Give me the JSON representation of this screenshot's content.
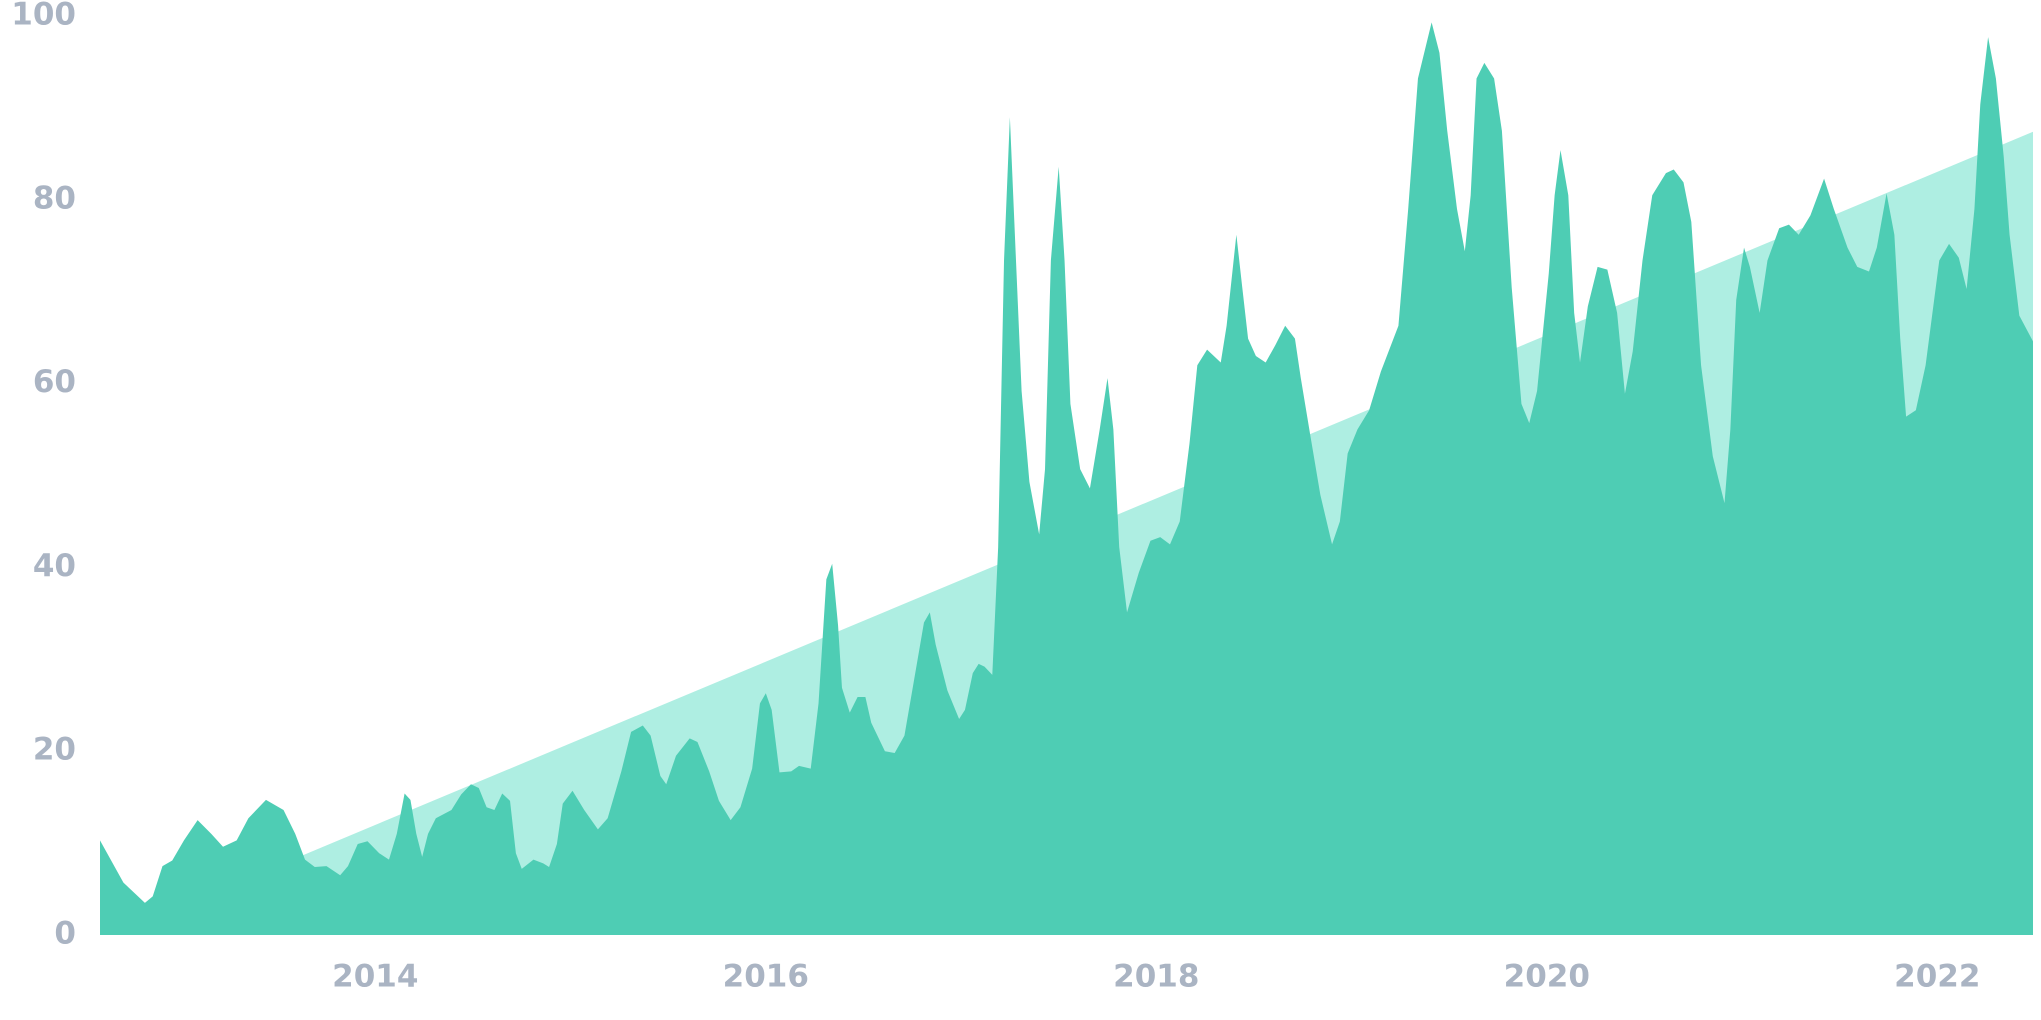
{
  "chart_data": {
    "type": "area",
    "x": [
      2012.59,
      2012.71,
      2012.82,
      2012.86,
      2012.91,
      2012.96,
      2013.02,
      2013.09,
      2013.16,
      2013.22,
      2013.29,
      2013.35,
      2013.44,
      2013.53,
      2013.59,
      2013.64,
      2013.69,
      2013.75,
      2013.82,
      2013.86,
      2013.91,
      2013.96,
      2014.02,
      2014.07,
      2014.11,
      2014.15,
      2014.18,
      2014.21,
      2014.24,
      2014.27,
      2014.31,
      2014.39,
      2014.44,
      2014.49,
      2014.53,
      2014.57,
      2014.61,
      2014.65,
      2014.69,
      2014.72,
      2014.75,
      2014.81,
      2014.86,
      2014.89,
      2014.93,
      2014.96,
      2015.01,
      2015.07,
      2015.14,
      2015.19,
      2015.26,
      2015.31,
      2015.37,
      2015.41,
      2015.46,
      2015.49,
      2015.54,
      2015.61,
      2015.65,
      2015.71,
      2015.76,
      2015.82,
      2015.87,
      2015.93,
      2015.97,
      2016.0,
      2016.03,
      2016.07,
      2016.13,
      2016.17,
      2016.23,
      2016.27,
      2016.31,
      2016.34,
      2016.37,
      2016.39,
      2016.43,
      2016.47,
      2016.51,
      2016.54,
      2016.61,
      2016.66,
      2016.71,
      2016.75,
      2016.81,
      2016.84,
      2016.87,
      2016.93,
      2016.99,
      2017.02,
      2017.06,
      2017.09,
      2017.12,
      2017.16,
      2017.19,
      2017.22,
      2017.25,
      2017.27,
      2017.31,
      2017.35,
      2017.4,
      2017.43,
      2017.46,
      2017.5,
      2017.53,
      2017.56,
      2017.61,
      2017.66,
      2017.71,
      2017.75,
      2017.78,
      2017.81,
      2017.85,
      2017.91,
      2017.97,
      2018.02,
      2018.07,
      2018.12,
      2018.17,
      2018.21,
      2018.26,
      2018.33,
      2018.36,
      2018.41,
      2018.44,
      2018.47,
      2018.51,
      2018.56,
      2018.61,
      2018.66,
      2018.71,
      2018.74,
      2018.79,
      2018.84,
      2018.9,
      2018.94,
      2018.98,
      2019.03,
      2019.09,
      2019.15,
      2019.24,
      2019.29,
      2019.34,
      2019.41,
      2019.45,
      2019.49,
      2019.54,
      2019.58,
      2019.61,
      2019.64,
      2019.68,
      2019.73,
      2019.77,
      2019.82,
      2019.87,
      2019.91,
      2019.95,
      2020.01,
      2020.04,
      2020.07,
      2020.11,
      2020.14,
      2020.17,
      2020.21,
      2020.26,
      2020.31,
      2020.36,
      2020.4,
      2020.44,
      2020.49,
      2020.54,
      2020.61,
      2020.65,
      2020.7,
      2020.74,
      2020.79,
      2020.85,
      2020.91,
      2020.94,
      2020.97,
      2021.01,
      2021.04,
      2021.09,
      2021.13,
      2021.19,
      2021.24,
      2021.29,
      2021.35,
      2021.42,
      2021.47,
      2021.54,
      2021.59,
      2021.65,
      2021.69,
      2021.74,
      2021.78,
      2021.81,
      2021.84,
      2021.89,
      2021.94,
      2022.01,
      2022.06,
      2022.11,
      2022.15,
      2022.19,
      2022.22,
      2022.26,
      2022.3,
      2022.34,
      2022.37,
      2022.42,
      2022.49
    ],
    "values": [
      10.3,
      5.7,
      3.5,
      4.2,
      7.5,
      8.1,
      10.3,
      12.5,
      11.0,
      9.6,
      10.3,
      12.7,
      14.7,
      13.6,
      11.0,
      8.2,
      7.4,
      7.5,
      6.5,
      7.5,
      9.9,
      10.2,
      8.9,
      8.2,
      11.0,
      15.4,
      14.7,
      11.0,
      8.5,
      11.0,
      12.7,
      13.6,
      15.3,
      16.4,
      16.0,
      13.9,
      13.6,
      15.4,
      14.6,
      8.9,
      7.2,
      8.2,
      7.8,
      7.4,
      9.9,
      14.3,
      15.7,
      13.6,
      11.5,
      12.7,
      17.8,
      22.1,
      22.8,
      21.7,
      17.3,
      16.4,
      19.5,
      21.4,
      21.0,
      17.8,
      14.6,
      12.5,
      13.9,
      18.1,
      25.2,
      26.3,
      24.5,
      17.7,
      17.8,
      18.4,
      18.1,
      25.2,
      38.7,
      40.4,
      33.7,
      26.9,
      24.2,
      25.9,
      25.9,
      23.1,
      20.0,
      19.8,
      21.7,
      26.6,
      34.0,
      35.1,
      31.6,
      26.6,
      23.5,
      24.5,
      28.5,
      29.5,
      29.2,
      28.3,
      42.2,
      73.4,
      89.0,
      79.0,
      59.2,
      49.3,
      43.6,
      50.7,
      73.4,
      83.6,
      73.4,
      57.8,
      50.7,
      48.6,
      55.0,
      60.6,
      55.0,
      42.2,
      35.1,
      39.4,
      42.9,
      43.3,
      42.5,
      45.0,
      53.5,
      62.0,
      63.7,
      62.3,
      66.3,
      76.2,
      70.5,
      64.9,
      63.0,
      62.3,
      64.2,
      66.3,
      64.9,
      60.6,
      54.2,
      47.9,
      42.5,
      45.0,
      52.4,
      55.0,
      57.1,
      61.3,
      66.3,
      79.0,
      93.2,
      99.3,
      96.0,
      87.5,
      79.0,
      74.4,
      80.5,
      93.2,
      94.9,
      93.2,
      87.5,
      70.5,
      57.8,
      55.7,
      59.2,
      72.0,
      80.5,
      85.4,
      80.5,
      67.7,
      62.3,
      68.4,
      72.7,
      72.4,
      67.7,
      58.9,
      63.5,
      73.4,
      80.5,
      82.9,
      83.3,
      81.9,
      77.6,
      62.0,
      52.1,
      47.0,
      55.0,
      69.1,
      74.8,
      72.7,
      67.7,
      73.4,
      76.9,
      77.3,
      76.2,
      78.3,
      82.3,
      79.0,
      74.8,
      72.7,
      72.2,
      74.8,
      80.7,
      76.2,
      64.9,
      56.4,
      57.1,
      62.0,
      73.4,
      75.2,
      73.7,
      70.3,
      79.0,
      90.4,
      97.7,
      93.2,
      84.7,
      76.2,
      67.4,
      64.6
    ],
    "color": "#4ecdb4",
    "trend": {
      "x": [
        2013.62,
        2022.49
      ],
      "values": [
        8.6,
        87.4
      ],
      "color": "#aeeee2"
    },
    "xlim": [
      2012.59,
      2022.49
    ],
    "xticks": [
      2014,
      2016,
      2018,
      2020,
      2022
    ],
    "ylim": [
      0,
      100
    ],
    "yticks": [
      0,
      20,
      40,
      60,
      80,
      100
    ],
    "grid": false
  }
}
